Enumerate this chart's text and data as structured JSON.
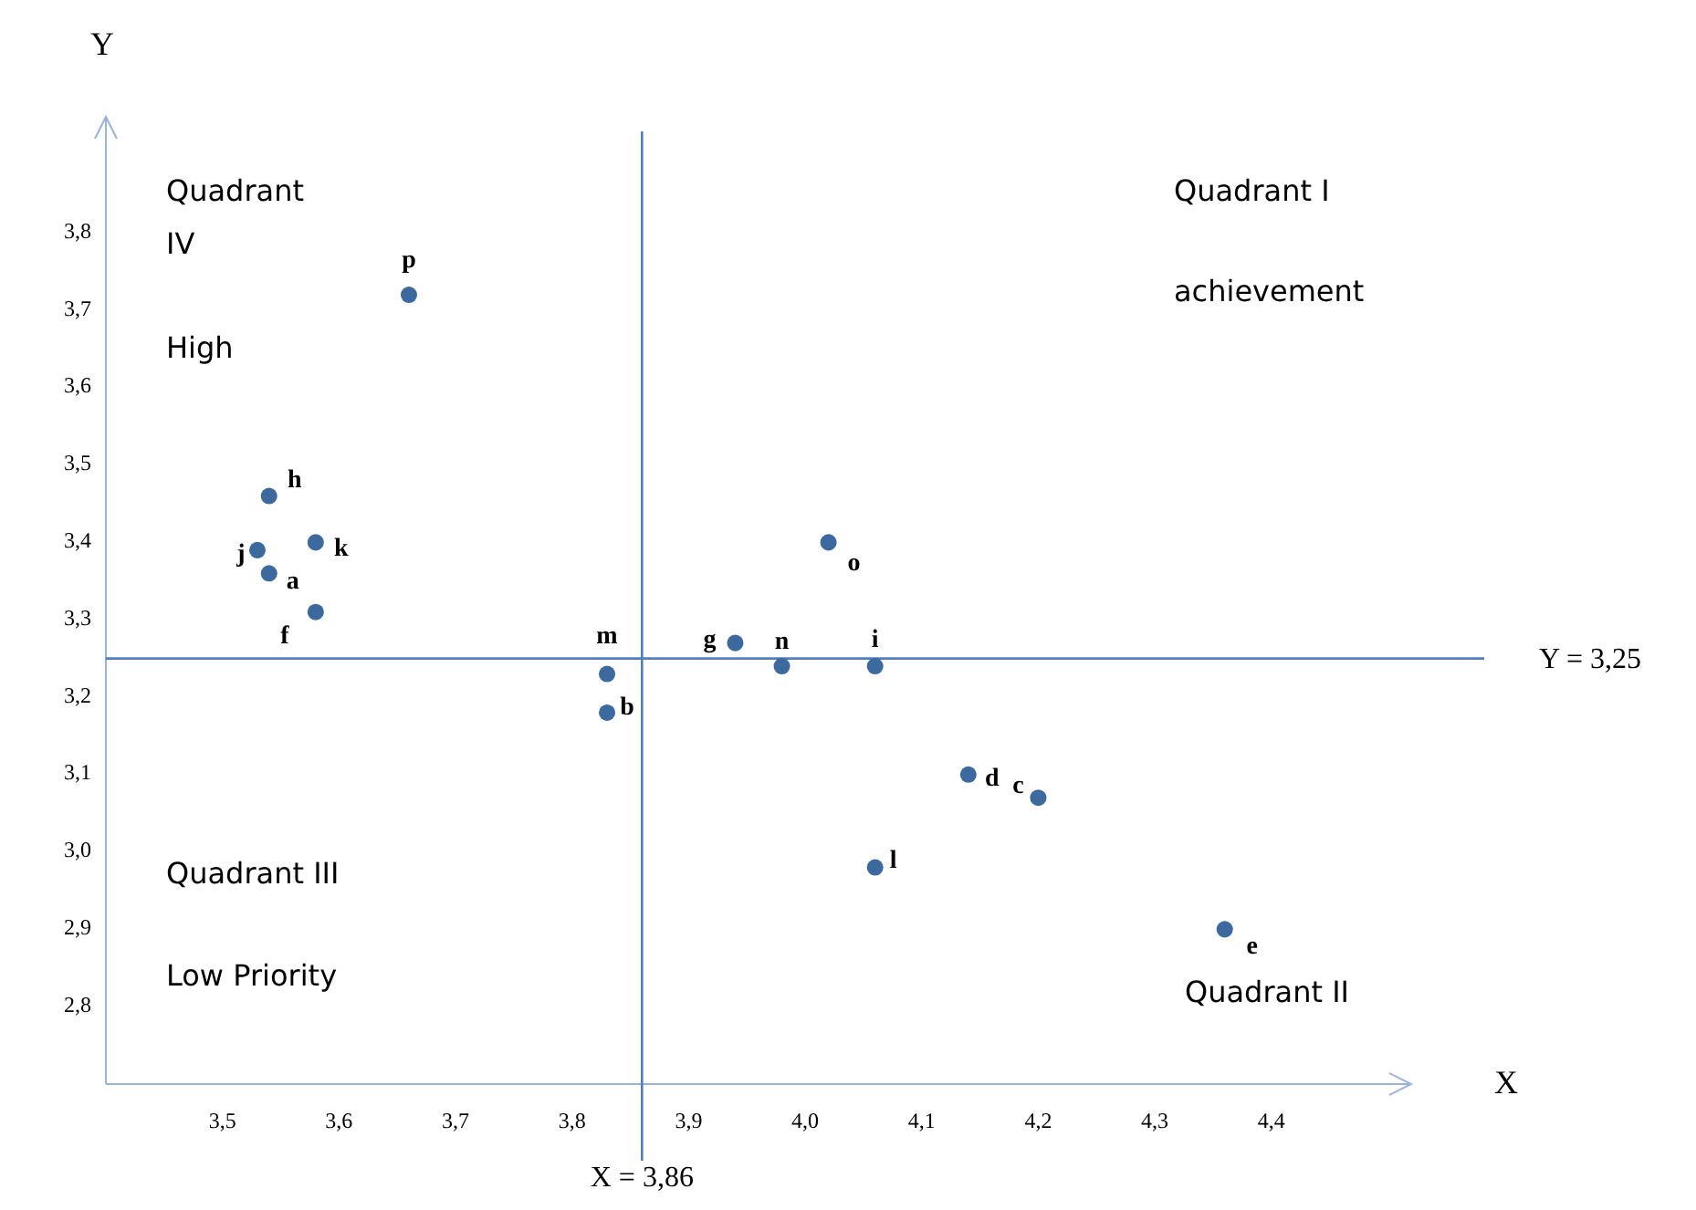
{
  "chart_data": {
    "type": "scatter",
    "xlabel": "X",
    "ylabel": "Y",
    "x": [
      3.66,
      3.54,
      3.53,
      3.58,
      3.54,
      3.58,
      3.83,
      3.83,
      3.94,
      3.98,
      4.06,
      4.02,
      4.14,
      4.2,
      4.06,
      4.36
    ],
    "series": [
      {
        "color": "#3d6a9e",
        "values": [
          3.72,
          3.46,
          3.39,
          3.4,
          3.36,
          3.31,
          3.23,
          3.18,
          3.27,
          3.24,
          3.24,
          3.4,
          3.1,
          3.07,
          2.98,
          2.9
        ]
      }
    ],
    "xlim": [
      3.4,
      4.52
    ],
    "ylim": [
      2.7,
      3.95
    ],
    "xticks": [
      {
        "value": 3.5,
        "label": "3,5"
      },
      {
        "value": 3.6,
        "label": "3,6"
      },
      {
        "value": 3.7,
        "label": "3,7"
      },
      {
        "value": 3.8,
        "label": "3,8"
      },
      {
        "value": 3.9,
        "label": "3,9"
      },
      {
        "value": 4.0,
        "label": "4,0"
      },
      {
        "value": 4.1,
        "label": "4,1"
      },
      {
        "value": 4.2,
        "label": "4,2"
      },
      {
        "value": 4.3,
        "label": "4,3"
      },
      {
        "value": 4.4,
        "label": "4,4"
      }
    ],
    "yticks": [
      {
        "value": 2.8,
        "label": "2,8"
      },
      {
        "value": 2.9,
        "label": "2,9"
      },
      {
        "value": 3.0,
        "label": "3,0"
      },
      {
        "value": 3.1,
        "label": "3,1"
      },
      {
        "value": 3.2,
        "label": "3,2"
      },
      {
        "value": 3.3,
        "label": "3,3"
      },
      {
        "value": 3.4,
        "label": "3,4"
      },
      {
        "value": 3.5,
        "label": "3,5"
      },
      {
        "value": 3.6,
        "label": "3,6"
      },
      {
        "value": 3.7,
        "label": "3,7"
      },
      {
        "value": 3.8,
        "label": "3,8"
      }
    ],
    "ref_lines": [
      {
        "axis": "x",
        "value": 3.86,
        "label": "X = 3,86",
        "color": "#4f7fc0"
      },
      {
        "axis": "y",
        "value": 3.25,
        "label": "Y = 3,25",
        "color": "#4f7fc0"
      }
    ],
    "marker": "circle",
    "grid": false,
    "annotations": [
      {
        "text": "p",
        "x": 3.66,
        "y": 3.72
      },
      {
        "text": "h",
        "x": 3.54,
        "y": 3.46
      },
      {
        "text": "j",
        "x": 3.53,
        "y": 3.39
      },
      {
        "text": "k",
        "x": 3.58,
        "y": 3.4
      },
      {
        "text": "a",
        "x": 3.54,
        "y": 3.36
      },
      {
        "text": "f",
        "x": 3.58,
        "y": 3.31
      },
      {
        "text": "m",
        "x": 3.83,
        "y": 3.23
      },
      {
        "text": "b",
        "x": 3.83,
        "y": 3.18
      },
      {
        "text": "g",
        "x": 3.94,
        "y": 3.27
      },
      {
        "text": "n",
        "x": 3.98,
        "y": 3.24
      },
      {
        "text": "i",
        "x": 4.06,
        "y": 3.24
      },
      {
        "text": "o",
        "x": 4.02,
        "y": 3.4
      },
      {
        "text": "d",
        "x": 4.14,
        "y": 3.1
      },
      {
        "text": "c",
        "x": 4.2,
        "y": 3.07
      },
      {
        "text": "l",
        "x": 4.06,
        "y": 2.98
      },
      {
        "text": "e",
        "x": 4.36,
        "y": 2.9
      },
      "Quadrant",
      "IV",
      "High",
      "Quadrant I",
      "achievement",
      "Quadrant III",
      "Low Priority",
      "Quadrant II"
    ]
  }
}
